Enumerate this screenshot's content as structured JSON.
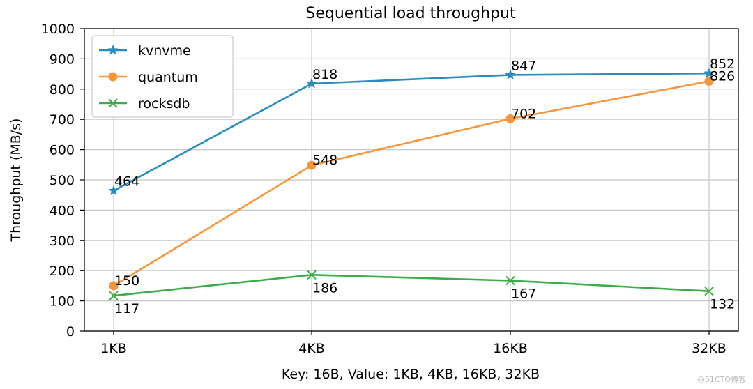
{
  "chart_data": {
    "type": "line",
    "title": "Sequential load throughput",
    "xlabel": "Key: 16B, Value: 1KB, 4KB, 16KB, 32KB",
    "ylabel": "Throughput (MB/s)",
    "categories": [
      "1KB",
      "4KB",
      "16KB",
      "32KB"
    ],
    "ylim": [
      0,
      1000
    ],
    "yticks": [
      0,
      100,
      200,
      300,
      400,
      500,
      600,
      700,
      800,
      900,
      1000
    ],
    "grid": true,
    "legend_position": "top-left",
    "series": [
      {
        "name": "kvnvme",
        "values": [
          464,
          818,
          847,
          852
        ],
        "color": "#2a8cba",
        "marker": "star"
      },
      {
        "name": "quantum",
        "values": [
          150,
          548,
          702,
          826
        ],
        "color": "#f5963c",
        "marker": "circle"
      },
      {
        "name": "rocksdb",
        "values": [
          117,
          186,
          167,
          132
        ],
        "color": "#3cac4a",
        "marker": "x"
      }
    ]
  },
  "watermark": "@51CTO博客"
}
